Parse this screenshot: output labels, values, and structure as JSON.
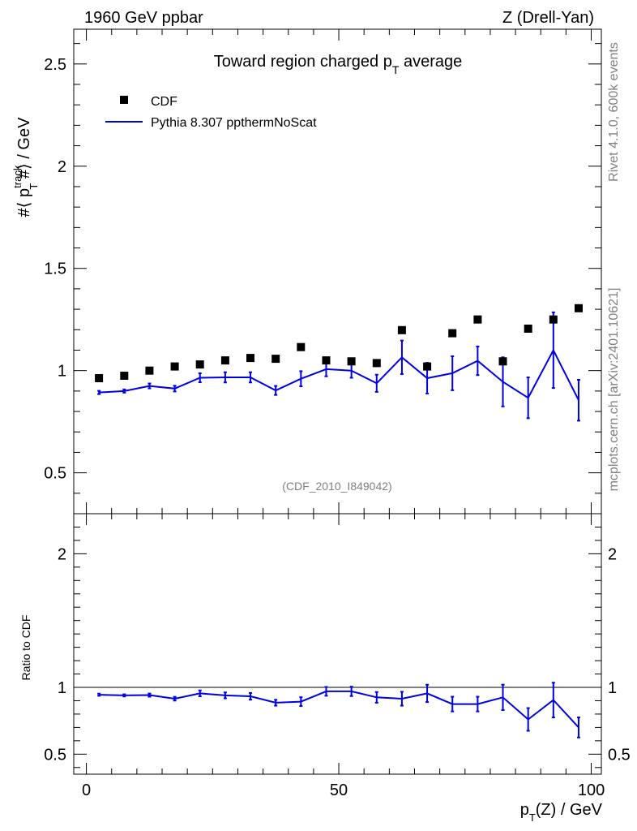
{
  "header": {
    "left": "1960 GeV ppbar",
    "right": "Z (Drell-Yan)"
  },
  "side": {
    "rivet": "Rivet 4.1.0,  600k events",
    "mcplots": "mcplots.cern.ch [arXiv:2401.10621]"
  },
  "chart_data": {
    "type": "scatter",
    "title_main": "Toward region charged p",
    "title_sub": "T",
    "title_tail": " average",
    "analysis_id": "(CDF_2010_I849042)",
    "ylabel_main": "#⟨ p",
    "ylabel_sup": "track",
    "ylabel_sub": "T",
    "ylabel_tail": " #⟩ / GeV",
    "xlabel_main": "p",
    "xlabel_sub": "T",
    "xlabel_tail": "(Z) / GeV",
    "ratio_ylabel": "Ratio to CDF",
    "xlim": [
      -2.5,
      102
    ],
    "ylim": [
      0.3,
      2.67
    ],
    "ratio_ylim": [
      0.35,
      2.3
    ],
    "x_ticks": [
      "0",
      "50",
      "100"
    ],
    "y_ticks": [
      "0.5",
      "1",
      "1.5",
      "2",
      "2.5"
    ],
    "ratio_y_ticks": [
      "0.5",
      "1",
      "2"
    ],
    "legend": [
      {
        "label": "CDF",
        "marker": "square",
        "color": "#000000"
      },
      {
        "label": "Pythia 8.307 ppthermNoScat",
        "marker": "line",
        "color": "#0000e0"
      }
    ],
    "x": [
      2.5,
      7.5,
      12.5,
      17.5,
      22.5,
      27.5,
      32.5,
      37.5,
      42.5,
      47.5,
      52.5,
      57.5,
      62.5,
      67.5,
      72.5,
      77.5,
      82.5,
      87.5,
      92.5,
      97.5
    ],
    "series": [
      {
        "name": "CDF",
        "values": [
          0.963,
          0.975,
          1.0,
          1.02,
          1.03,
          1.05,
          1.062,
          1.058,
          1.115,
          1.05,
          1.045,
          1.037,
          1.198,
          1.02,
          1.183,
          1.25,
          1.045,
          1.205,
          1.25,
          1.305
        ]
      },
      {
        "name": "Pythia 8.307 ppthermNoScat",
        "values": [
          0.893,
          0.9,
          0.925,
          0.912,
          0.965,
          0.967,
          0.967,
          0.903,
          0.96,
          1.007,
          1.0,
          0.938,
          1.065,
          0.963,
          0.987,
          1.048,
          0.945,
          0.867,
          1.1,
          0.855
        ],
        "errors": [
          0.008,
          0.008,
          0.012,
          0.014,
          0.022,
          0.025,
          0.025,
          0.022,
          0.037,
          0.035,
          0.035,
          0.042,
          0.082,
          0.075,
          0.083,
          0.07,
          0.12,
          0.1,
          0.185,
          0.1
        ]
      }
    ],
    "ratio": {
      "values": [
        0.945,
        0.94,
        0.942,
        0.915,
        0.955,
        0.94,
        0.933,
        0.885,
        0.893,
        0.97,
        0.97,
        0.925,
        0.915,
        0.955,
        0.875,
        0.875,
        0.925,
        0.76,
        0.905,
        0.7
      ],
      "errors": [
        0.008,
        0.008,
        0.012,
        0.014,
        0.022,
        0.022,
        0.025,
        0.022,
        0.033,
        0.033,
        0.035,
        0.04,
        0.052,
        0.065,
        0.055,
        0.055,
        0.095,
        0.085,
        0.13,
        0.075
      ]
    }
  }
}
